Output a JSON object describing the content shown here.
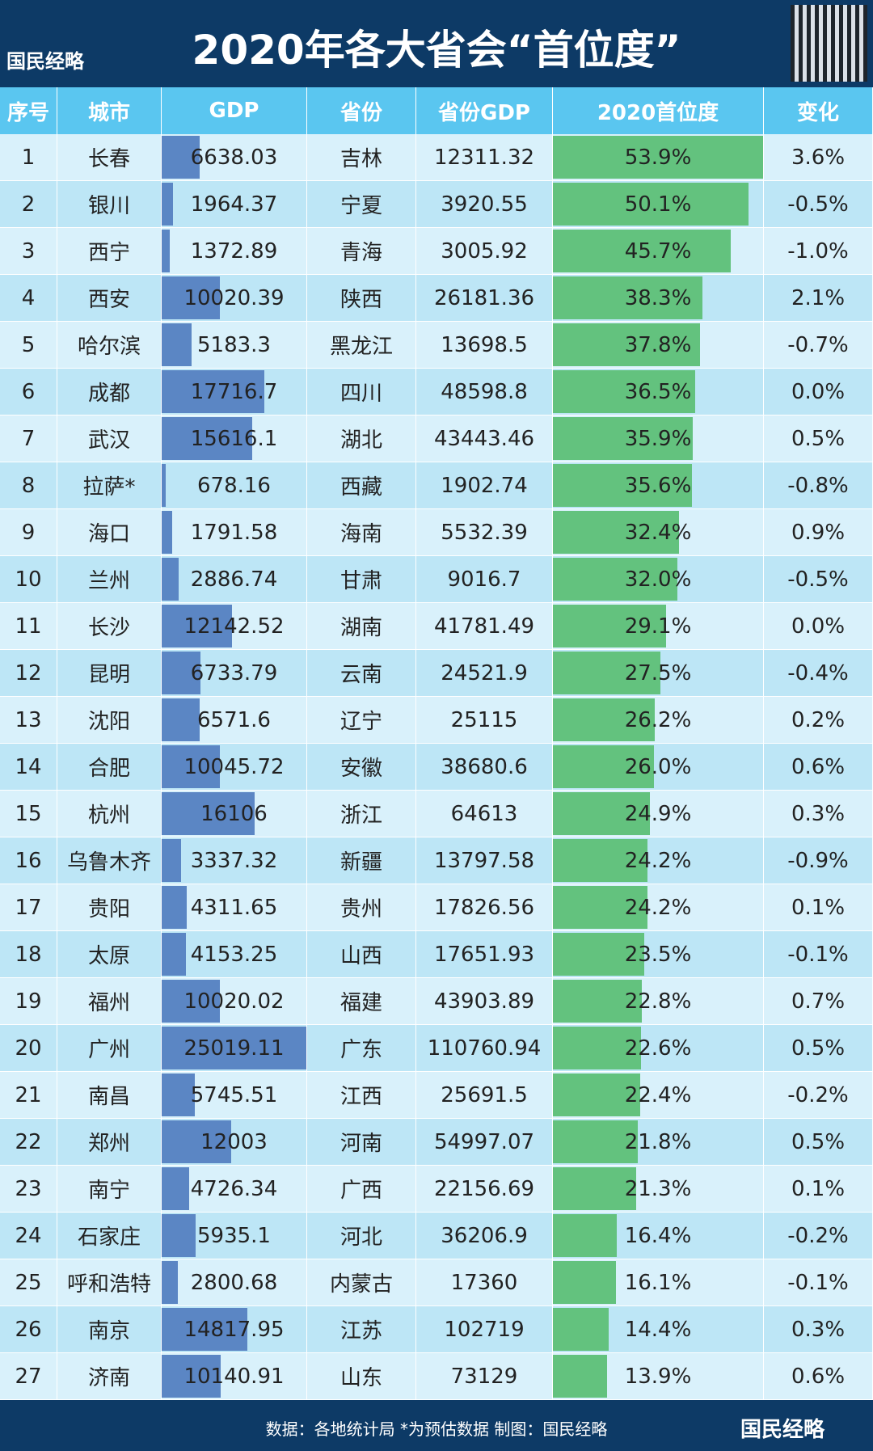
{
  "header": {
    "title": "2020年各大省会“首位度”",
    "logo": "国民经略"
  },
  "table": {
    "columns": [
      "序号",
      "城市",
      "GDP",
      "省份",
      "省份GDP",
      "2020首位度",
      "变化"
    ],
    "rows": [
      [
        1,
        "长春",
        6638.03,
        "吉林",
        12311.32,
        "53.9%",
        "3.6%"
      ],
      [
        2,
        "银川",
        1964.37,
        "宁夏",
        3920.55,
        "50.1%",
        "-0.5%"
      ],
      [
        3,
        "西宁",
        1372.89,
        "青海",
        3005.92,
        "45.7%",
        "-1.0%"
      ],
      [
        4,
        "西安",
        10020.39,
        "陕西",
        26181.36,
        "38.3%",
        "2.1%"
      ],
      [
        5,
        "哈尔滨",
        5183.3,
        "黑龙江",
        13698.5,
        "37.8%",
        "-0.7%"
      ],
      [
        6,
        "成都",
        17716.7,
        "四川",
        48598.8,
        "36.5%",
        "0.0%"
      ],
      [
        7,
        "武汉",
        15616.1,
        "湖北",
        43443.46,
        "35.9%",
        "0.5%"
      ],
      [
        8,
        "拉萨*",
        678.16,
        "西藏",
        1902.74,
        "35.6%",
        "-0.8%"
      ],
      [
        9,
        "海口",
        1791.58,
        "海南",
        5532.39,
        "32.4%",
        "0.9%"
      ],
      [
        10,
        "兰州",
        2886.74,
        "甘肃",
        9016.7,
        "32.0%",
        "-0.5%"
      ],
      [
        11,
        "长沙",
        12142.52,
        "湖南",
        41781.49,
        "29.1%",
        "0.0%"
      ],
      [
        12,
        "昆明",
        6733.79,
        "云南",
        24521.9,
        "27.5%",
        "-0.4%"
      ],
      [
        13,
        "沈阳",
        6571.6,
        "辽宁",
        25115,
        "26.2%",
        "0.2%"
      ],
      [
        14,
        "合肥",
        10045.72,
        "安徽",
        38680.6,
        "26.0%",
        "0.6%"
      ],
      [
        15,
        "杭州",
        16106,
        "浙江",
        64613,
        "24.9%",
        "0.3%"
      ],
      [
        16,
        "乌鲁木齐",
        3337.32,
        "新疆",
        13797.58,
        "24.2%",
        "-0.9%"
      ],
      [
        17,
        "贵阳",
        4311.65,
        "贵州",
        17826.56,
        "24.2%",
        "0.1%"
      ],
      [
        18,
        "太原",
        4153.25,
        "山西",
        17651.93,
        "23.5%",
        "-0.1%"
      ],
      [
        19,
        "福州",
        10020.02,
        "福建",
        43903.89,
        "22.8%",
        "0.7%"
      ],
      [
        20,
        "广州",
        25019.11,
        "广东",
        110760.94,
        "22.6%",
        "0.5%"
      ],
      [
        21,
        "南昌",
        5745.51,
        "江西",
        25691.5,
        "22.4%",
        "-0.2%"
      ],
      [
        22,
        "郑州",
        12003,
        "河南",
        54997.07,
        "21.8%",
        "0.5%"
      ],
      [
        23,
        "南宁",
        4726.34,
        "广西",
        22156.69,
        "21.3%",
        "0.1%"
      ],
      [
        24,
        "石家庄",
        5935.1,
        "河北",
        36206.9,
        "16.4%",
        "-0.2%"
      ],
      [
        25,
        "呼和浩特",
        2800.68,
        "内蒙古",
        17360,
        "16.1%",
        "-0.1%"
      ],
      [
        26,
        "南京",
        14817.95,
        "江苏",
        102719,
        "14.4%",
        "0.3%"
      ],
      [
        27,
        "济南",
        10140.91,
        "山东",
        73129,
        "13.9%",
        "0.6%"
      ]
    ]
  },
  "footer": {
    "source": "数据：各地统计局 *为预估数据 制图：国民经略",
    "logo": "国民经略"
  }
}
